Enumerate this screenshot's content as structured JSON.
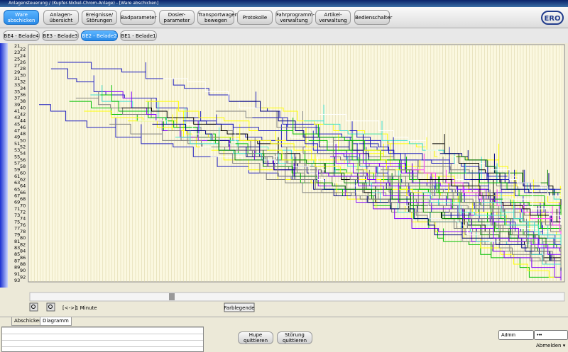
{
  "window_title": "Anlagensteuerung / (Kupfer-Nickel-Chrom-Anlage) - [Ware abschicken]",
  "nav": [
    [
      "Ware",
      "abschicken"
    ],
    [
      "Anlagen-",
      "übersicht"
    ],
    [
      "Ereignisse/",
      "Störungen"
    ],
    [
      "Badparameter"
    ],
    [
      "Dosier-",
      "parameter"
    ],
    [
      "Transportwagen",
      "bewegen"
    ],
    [
      "Protokolle"
    ],
    [
      "Fahrprogramm-",
      "verwaltung"
    ],
    [
      "Artikel-",
      "verwaltung"
    ],
    [
      "Bedienschalter"
    ]
  ],
  "logo": "ERO",
  "tabs": [
    "BE4 - Belade4",
    "BE3 - Belade3",
    "BE2 - Belade2",
    "BE1 - Belade1"
  ],
  "y_labels": [
    "21",
    "22",
    "23",
    "24",
    "25",
    "26",
    "27",
    "28",
    "29",
    "30",
    "31",
    "32",
    "33",
    "34",
    "35",
    "36",
    "37",
    "38",
    "39",
    "40",
    "41",
    "42",
    "43",
    "44",
    "45",
    "46",
    "47",
    "48",
    "49",
    "50",
    "51",
    "52",
    "53",
    "54",
    "55",
    "56",
    "57",
    "58",
    "59",
    "60",
    "61",
    "62",
    "63",
    "64",
    "65",
    "66",
    "67",
    "68",
    "69",
    "70",
    "71",
    "72",
    "73",
    "74",
    "75",
    "76",
    "77",
    "78",
    "79",
    "80",
    "81",
    "82",
    "83",
    "84",
    "85",
    "86",
    "87",
    "88",
    "89",
    "90",
    "91",
    "92",
    "93"
  ],
  "zoom_range": "[<->]",
  "zoom_unit": "1 Minute",
  "legend_button": "Farblegende",
  "bottom_tabs": [
    "Abschicken",
    "Diagramm"
  ],
  "actions": [
    [
      "Hupe quittieren"
    ],
    [
      "Störung",
      "quittieren"
    ]
  ],
  "user": "Admin",
  "password": "•••",
  "logout": "Abmelden"
}
